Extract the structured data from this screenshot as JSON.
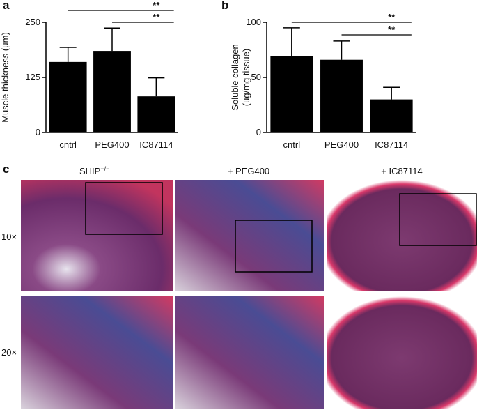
{
  "chart_data": [
    {
      "type": "bar",
      "panel": "a",
      "ylabel": [
        "Muscle thickness (μm)"
      ],
      "categories": [
        "cntrl",
        "PEG400",
        "IC87114"
      ],
      "values": [
        160,
        185,
        82
      ],
      "errors": [
        33,
        52,
        42
      ],
      "color": "#000000",
      "ylim": [
        0,
        250
      ],
      "yticks": [
        0,
        125,
        250
      ],
      "grid": false,
      "annotations": [
        {
          "text": "**",
          "between": [
            "cntrl",
            "IC87114"
          ]
        },
        {
          "text": "**",
          "between": [
            "PEG400",
            "IC87114"
          ]
        }
      ]
    },
    {
      "type": "bar",
      "panel": "b",
      "ylabel": [
        "Soluble collagen",
        "(ug/mg tissue)"
      ],
      "categories": [
        "cntrl",
        "PEG400",
        "IC87114"
      ],
      "values": [
        69,
        66,
        30
      ],
      "errors": [
        26,
        17,
        11
      ],
      "color": "#000000",
      "ylim": [
        0,
        100
      ],
      "yticks": [
        0,
        50,
        100
      ],
      "grid": false,
      "annotations": [
        {
          "text": "**",
          "between": [
            "cntrl",
            "IC87114"
          ]
        },
        {
          "text": "**",
          "between": [
            "PEG400",
            "IC87114"
          ]
        }
      ]
    }
  ],
  "panel_c": {
    "letter": "c",
    "columns": [
      {
        "base": "SHIP",
        "sup": "−/−"
      },
      {
        "base": "+ PEG400"
      },
      {
        "base": "+ IC87114"
      }
    ],
    "rows": [
      "10×",
      "20×"
    ]
  }
}
